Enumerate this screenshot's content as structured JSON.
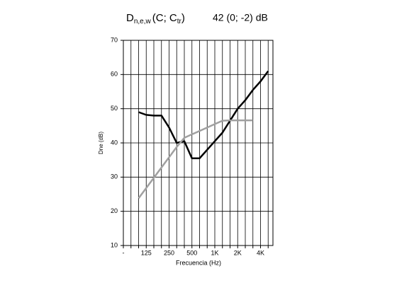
{
  "chart_data": {
    "type": "line",
    "title_parts": [
      "D",
      "n,e,w",
      "(C; C",
      "tr",
      ")"
    ],
    "rating": "42 (0; -2) dB",
    "y_label": "Dne (dB)",
    "x_label": "Frecuencia (Hz)",
    "categories": [
      "-",
      null,
      null,
      "125",
      null,
      null,
      "250",
      null,
      null,
      "500",
      null,
      null,
      "1K",
      null,
      null,
      "2K",
      null,
      null,
      "4K",
      null
    ],
    "series": [
      {
        "color": "#000000",
        "values": [
          null,
          null,
          49,
          48.2,
          48,
          48,
          44.5,
          40,
          40.5,
          35.5,
          35.5,
          38,
          40.5,
          43,
          46.5,
          50,
          52.5,
          55.5,
          58,
          61
        ]
      },
      {
        "color": "#a0a0a0",
        "values": [
          null,
          null,
          23.8,
          26.8,
          29.8,
          32.8,
          35.8,
          38.8,
          41.5,
          42.5,
          43.5,
          44.5,
          45.5,
          46.5,
          46.6,
          46.6,
          46.6,
          46.6,
          null,
          null
        ]
      }
    ],
    "ylim": [
      10,
      70
    ],
    "yticks": [
      10,
      20,
      30,
      40,
      50,
      60,
      70
    ],
    "grid": true
  }
}
